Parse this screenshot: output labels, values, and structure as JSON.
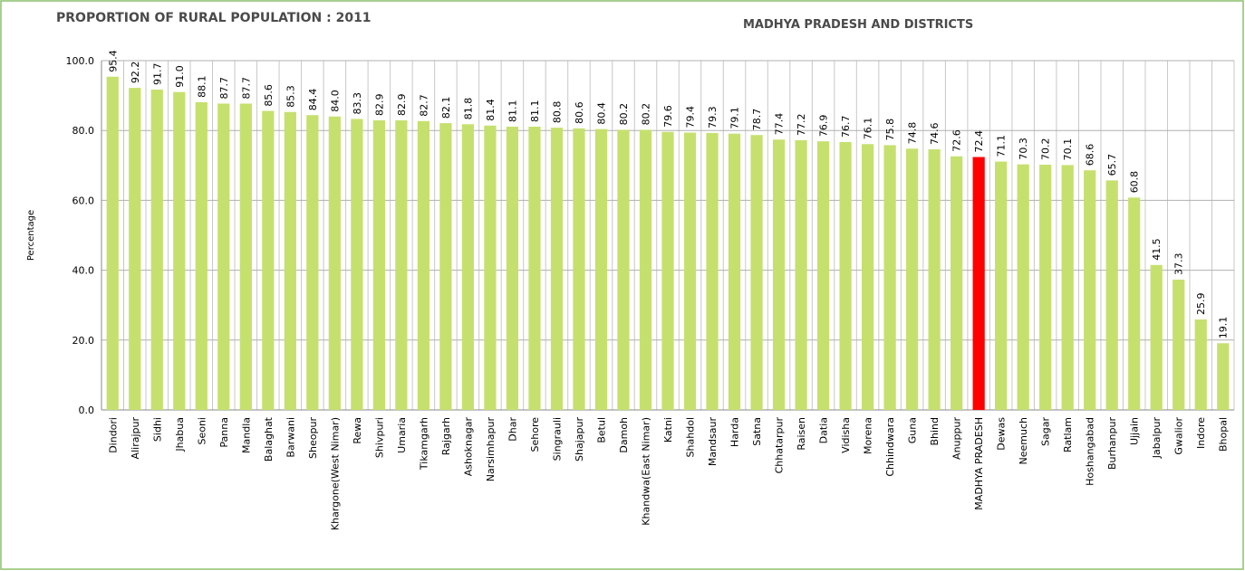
{
  "chart_data": {
    "type": "bar",
    "title": "PROPORTION OF RURAL POPULATION : 2011",
    "subtitle": "MADHYA PRADESH AND DISTRICTS",
    "y_label": "Percentage",
    "categories": [
      "Dindori",
      "Alirajpur",
      "Sidhi",
      "Jhabua",
      "Seoni",
      "Panna",
      "Mandla",
      "Balaghat",
      "Barwani",
      "Sheopur",
      "Khargone(West Nimar)",
      "Rewa",
      "Shivpuri",
      "Umaria",
      "Tikamgarh",
      "Rajgarh",
      "Ashoknagar",
      "Narsimhapur",
      "Dhar",
      "Sehore",
      "Singrauli",
      "Shajapur",
      "Betul",
      "Damoh",
      "Khandwa(East Nimar)",
      "Katni",
      "Shahdol",
      "Mandsaur",
      "Harda",
      "Satna",
      "Chhatarpur",
      "Raisen",
      "Datia",
      "Vidisha",
      "Morena",
      "Chhindwara",
      "Guna",
      "Bhind",
      "Anuppur",
      "MADHYA PRADESH",
      "Dewas",
      "Neemuch",
      "Sagar",
      "Ratlam",
      "Hoshangabad",
      "Burhanpur",
      "Ujjain",
      "Jabalpur",
      "Gwalior",
      "Indore",
      "Bhopal"
    ],
    "values": [
      95.4,
      92.2,
      91.7,
      91.0,
      88.1,
      87.7,
      87.7,
      85.6,
      85.3,
      84.4,
      84.0,
      83.3,
      82.9,
      82.9,
      82.7,
      82.1,
      81.8,
      81.4,
      81.1,
      81.1,
      80.8,
      80.6,
      80.4,
      80.2,
      80.2,
      79.6,
      79.4,
      79.3,
      79.1,
      78.7,
      77.4,
      77.2,
      76.9,
      76.7,
      76.1,
      75.8,
      74.8,
      74.6,
      72.6,
      72.4,
      71.1,
      70.3,
      70.2,
      70.1,
      68.6,
      65.7,
      60.8,
      41.5,
      37.3,
      25.9,
      19.1
    ],
    "value_labels": [
      "95.4",
      "92.2",
      "91.7",
      "91.0",
      "88.1",
      "87.7",
      "87.7",
      "85.6",
      "85.3",
      "84.4",
      "84.0",
      "83.3",
      "82.9",
      "82.9",
      "82.7",
      "82.1",
      "81.8",
      "81.4",
      "81.1",
      "81.1",
      "80.8",
      "80.6",
      "80.4",
      "80.2",
      "80.2",
      "79.6",
      "79.4",
      "79.3",
      "79.1",
      "78.7",
      "77.4",
      "77.2",
      "76.9",
      "76.7",
      "76.1",
      "75.8",
      "74.8",
      "74.6",
      "72.6",
      "72.4",
      "71.1",
      "70.3",
      "70.2",
      "70.1",
      "68.6",
      "65.7",
      "60.8",
      "41.5",
      "37.3",
      "25.9",
      "19.1"
    ],
    "color": "#c6e06e",
    "highlight": {
      "category": "MADHYA PRADESH",
      "color": "#ff0000"
    },
    "ylim": [
      0,
      100
    ],
    "yticks": [
      {
        "value": 0,
        "label": "0.0"
      },
      {
        "value": 20,
        "label": "20.0"
      },
      {
        "value": 40,
        "label": "40.0"
      },
      {
        "value": 60,
        "label": "60.0"
      },
      {
        "value": 80,
        "label": "80.0"
      },
      {
        "value": 100,
        "label": "100.0"
      }
    ],
    "grid": true
  }
}
